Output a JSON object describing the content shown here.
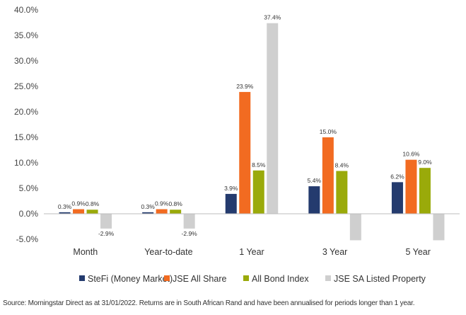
{
  "chart_data": {
    "type": "bar",
    "categories": [
      "Month",
      "Year-to-date",
      "1 Year",
      "3 Year",
      "5 Year"
    ],
    "series": [
      {
        "name": "SteFi (Money Market)",
        "color": "#243b6e",
        "values": [
          0.3,
          0.3,
          3.9,
          5.4,
          6.2
        ],
        "labels": [
          "0.3%",
          "0.3%",
          "3.9%",
          "5.4%",
          "6.2%"
        ]
      },
      {
        "name": "JSE All Share",
        "color": "#f26b21",
        "values": [
          0.9,
          0.9,
          23.9,
          15.0,
          10.6
        ],
        "labels": [
          "0.9%",
          "0.9%",
          "23.9%",
          "15.0%",
          "10.6%"
        ]
      },
      {
        "name": "All Bond Index",
        "color": "#9aaa0a",
        "values": [
          0.8,
          0.8,
          8.5,
          8.4,
          9.0
        ],
        "labels": [
          "0.8%",
          "0.8%",
          "8.5%",
          "8.4%",
          "9.0%"
        ]
      },
      {
        "name": "JSE SA Listed Property",
        "color": "#cfcfcf",
        "values": [
          -2.9,
          -2.9,
          37.4,
          -5.2,
          -5.2
        ],
        "labels": [
          "-2.9%",
          "-2.9%",
          "37.4%",
          "",
          ""
        ]
      }
    ],
    "y_ticks": [
      -5,
      0,
      5,
      10,
      15,
      20,
      25,
      30,
      35,
      40
    ],
    "y_tick_labels": [
      "-5.0%",
      "0.0%",
      "5.0%",
      "10.0%",
      "15.0%",
      "20.0%",
      "25.0%",
      "30.0%",
      "35.0%",
      "40.0%"
    ],
    "ylim": [
      -5,
      40
    ],
    "title": "",
    "xlabel": "",
    "ylabel": "",
    "grid": false,
    "legend_position": "bottom"
  },
  "footer": {
    "source": "Source: Morningstar Direct as at 31/01/2022. Returns are in South African Rand and have been annualised for periods longer than 1 year."
  }
}
